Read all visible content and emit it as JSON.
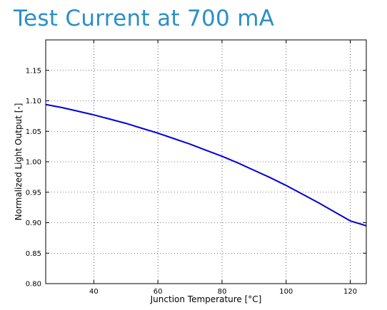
{
  "title": "Test Current at 700 mA",
  "chart_data": {
    "type": "line",
    "title": "Test Current at 700 mA",
    "xlabel": "Junction Temperature [°C]",
    "ylabel": "Normalized Light Output [-]",
    "xlim": [
      25,
      125
    ],
    "ylim": [
      0.8,
      1.2
    ],
    "x_ticks": [
      40,
      60,
      80,
      100,
      120
    ],
    "y_ticks": [
      0.8,
      0.85,
      0.9,
      0.95,
      1.0,
      1.05,
      1.1,
      1.15
    ],
    "x_tick_labels": [
      "40",
      "60",
      "80",
      "100",
      "120"
    ],
    "y_tick_labels": [
      "0.80",
      "0.85",
      "0.90",
      "0.95",
      "1.00",
      "1.05",
      "1.10",
      "1.15"
    ],
    "grid": true,
    "series": [
      {
        "color": "#0000dd",
        "x": [
          25,
          30,
          35,
          40,
          45,
          50,
          55,
          60,
          65,
          70,
          75,
          80,
          85,
          90,
          95,
          100,
          105,
          110,
          115,
          120,
          125
        ],
        "y": [
          1.094,
          1.089,
          1.083,
          1.077,
          1.07,
          1.063,
          1.055,
          1.047,
          1.038,
          1.029,
          1.019,
          1.009,
          0.998,
          0.986,
          0.974,
          0.961,
          0.947,
          0.933,
          0.918,
          0.903,
          0.895
        ]
      }
    ]
  }
}
